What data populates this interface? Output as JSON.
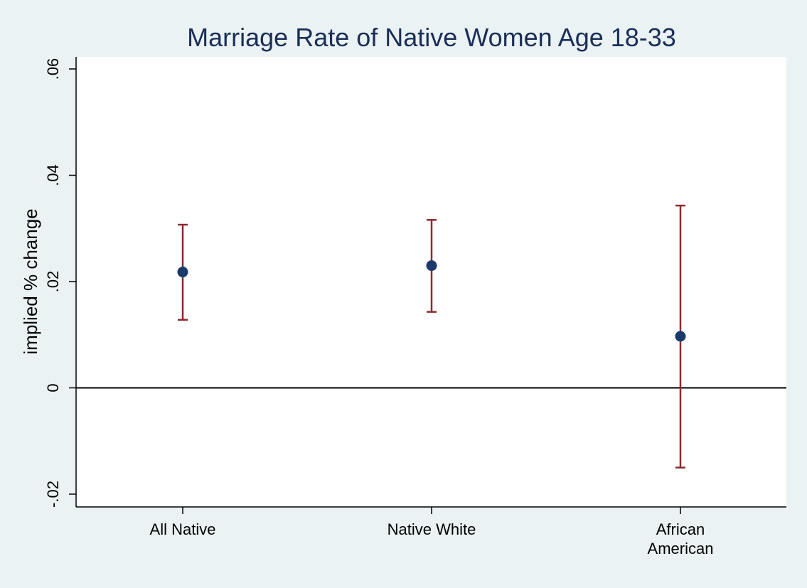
{
  "chart_data": {
    "type": "scatter",
    "title": "Marriage Rate of Native Women Age 18-33",
    "xlabel": "",
    "ylabel": "implied % change",
    "categories": [
      [
        "All Native"
      ],
      [
        "Native White"
      ],
      [
        "African",
        "American"
      ]
    ],
    "y_tick_labels": [
      "-.02",
      "0",
      ".02",
      ".04",
      ".06"
    ],
    "y_tick_values": [
      -0.02,
      0,
      0.02,
      0.04,
      0.06
    ],
    "ylim": [
      -0.0225,
      0.0625
    ],
    "reference_line_y": 0,
    "grid": false,
    "series": [
      {
        "values": [
          0.0218,
          0.023,
          0.0097
        ],
        "ci_lower": [
          0.0128,
          0.0143,
          -0.015
        ],
        "ci_upper": [
          0.0307,
          0.0316,
          0.0343
        ]
      }
    ],
    "colors": {
      "background": "#eaf2f3",
      "plot_background": "#ffffff",
      "marker": "#1a3a6c",
      "error_bar": "#8b2a2e",
      "title": "#1a2e57"
    }
  }
}
